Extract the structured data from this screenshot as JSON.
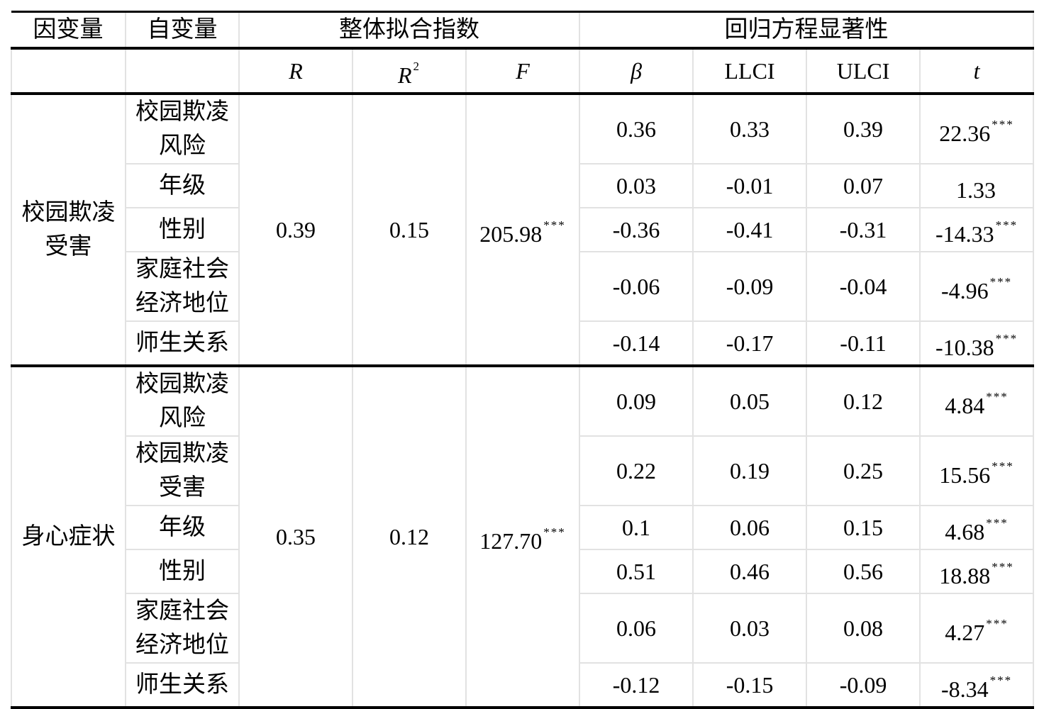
{
  "header": {
    "dv": "因变量",
    "iv": "自变量",
    "fit": "整体拟合指数",
    "sig": "回归方程显著性",
    "R": "R",
    "R2": "R",
    "R2_sup": "2",
    "F": "F",
    "beta": "β",
    "llci": "LLCI",
    "ulci": "ULCI",
    "t": "t"
  },
  "groups": [
    {
      "dv": "校园欺凌受害",
      "R": "0.39",
      "R2": "0.15",
      "F": "205.98",
      "F_sig": "***",
      "rows": [
        {
          "iv": "校园欺凌风险",
          "beta": "0.36",
          "llci": "0.33",
          "ulci": "0.39",
          "t": "22.36",
          "sig": "***"
        },
        {
          "iv": "年级",
          "beta": "0.03",
          "llci": "-0.01",
          "ulci": "0.07",
          "t": "1.33",
          "sig": ""
        },
        {
          "iv": "性别",
          "beta": "-0.36",
          "llci": "-0.41",
          "ulci": "-0.31",
          "t": "-14.33",
          "sig": "***"
        },
        {
          "iv": "家庭社会经济地位",
          "beta": "-0.06",
          "llci": "-0.09",
          "ulci": "-0.04",
          "t": "-4.96",
          "sig": "***"
        },
        {
          "iv": "师生关系",
          "beta": "-0.14",
          "llci": "-0.17",
          "ulci": "-0.11",
          "t": "-10.38",
          "sig": "***"
        }
      ]
    },
    {
      "dv": "身心症状",
      "R": "0.35",
      "R2": "0.12",
      "F": "127.70",
      "F_sig": "***",
      "rows": [
        {
          "iv": "校园欺凌风险",
          "beta": "0.09",
          "llci": "0.05",
          "ulci": "0.12",
          "t": "4.84",
          "sig": "***"
        },
        {
          "iv": "校园欺凌受害",
          "beta": "0.22",
          "llci": "0.19",
          "ulci": "0.25",
          "t": "15.56",
          "sig": "***"
        },
        {
          "iv": "年级",
          "beta": "0.1",
          "llci": "0.06",
          "ulci": "0.15",
          "t": "4.68",
          "sig": "***"
        },
        {
          "iv": "性别",
          "beta": "0.51",
          "llci": "0.46",
          "ulci": "0.56",
          "t": "18.88",
          "sig": "***"
        },
        {
          "iv": "家庭社会经济地位",
          "beta": "0.06",
          "llci": "0.03",
          "ulci": "0.08",
          "t": "4.27",
          "sig": "***"
        },
        {
          "iv": "师生关系",
          "beta": "-0.12",
          "llci": "-0.15",
          "ulci": "-0.09",
          "t": "-8.34",
          "sig": "***"
        }
      ]
    }
  ]
}
